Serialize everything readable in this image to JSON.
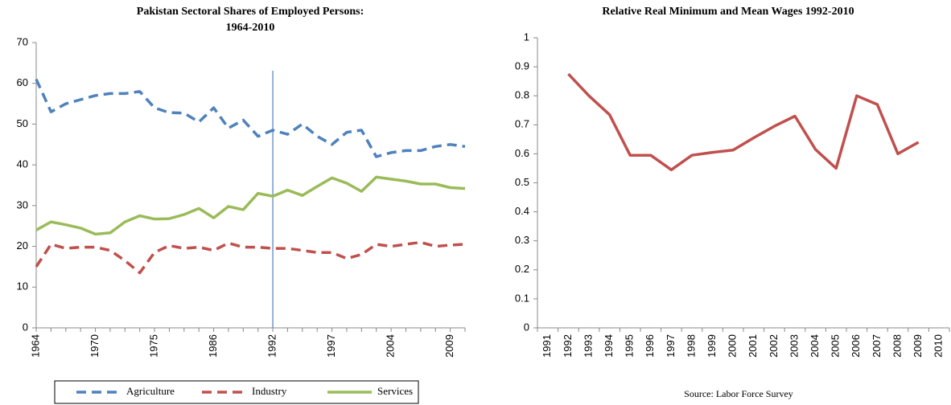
{
  "chart_data": [
    {
      "type": "line",
      "title": [
        "Pakistan Sectoral Shares of Employed Persons:",
        "1964-2010"
      ],
      "categories": [
        "1964",
        null,
        null,
        null,
        "1970",
        null,
        null,
        null,
        "1975",
        null,
        null,
        null,
        "1986",
        null,
        null,
        null,
        "1992",
        null,
        null,
        null,
        "1997",
        null,
        null,
        null,
        "2004",
        null,
        null,
        null,
        "2009",
        null
      ],
      "series": [
        {
          "name": "Agriculture",
          "color": "#4f81bd",
          "style": "dashed",
          "values": [
            61,
            53,
            55,
            56,
            57,
            57.5,
            57.5,
            58,
            54,
            52.8,
            52.7,
            50.5,
            54,
            49,
            51,
            47,
            48.5,
            47.5,
            50,
            47,
            45,
            48,
            48.5,
            42,
            43,
            43.5,
            43.5,
            44.5,
            45,
            44.5
          ]
        },
        {
          "name": "Industry",
          "color": "#c0504d",
          "style": "dashed",
          "values": [
            15,
            20.5,
            19.5,
            19.8,
            19.8,
            19,
            16.5,
            13.5,
            18.5,
            20.2,
            19.5,
            19.8,
            19,
            20.8,
            19.8,
            19.8,
            19.5,
            19.5,
            19,
            18.5,
            18.5,
            17,
            18,
            20.5,
            20,
            20.5,
            21,
            20,
            20.3,
            20.5
          ]
        },
        {
          "name": "Services",
          "color": "#9bbb59",
          "style": "solid",
          "values": [
            24,
            26,
            25.3,
            24.5,
            23,
            23.3,
            26,
            27.5,
            26.7,
            26.8,
            27.8,
            29.3,
            27,
            29.8,
            29,
            33,
            32.3,
            33.8,
            32.5,
            34.7,
            36.8,
            35.5,
            33.5,
            37,
            36.5,
            36,
            35.3,
            35.3,
            34.4,
            34.2
          ]
        }
      ],
      "vline": "1992",
      "vline_color": "#4f81bd",
      "ylim": [
        0,
        70
      ],
      "yticks": [
        0,
        10,
        20,
        30,
        40,
        50,
        60,
        70
      ],
      "legend": "bottom"
    },
    {
      "type": "line",
      "title": [
        "Relative Real Minimum and Mean Wages 1992-2010"
      ],
      "categories": [
        "1991",
        "1992",
        "1993",
        "1994",
        "1995",
        "1996",
        "1997",
        "1998",
        "1999",
        "2000",
        "2001",
        "2002",
        "2003",
        "2004",
        "2005",
        "2006",
        "2007",
        "2008",
        "2009",
        "2010"
      ],
      "series": [
        {
          "color": "#c0504d",
          "style": "solid",
          "values": [
            null,
            0.875,
            0.8,
            0.735,
            0.595,
            0.595,
            0.545,
            0.595,
            0.605,
            0.613,
            0.655,
            0.695,
            0.73,
            0.615,
            0.55,
            0.8,
            0.77,
            0.6,
            0.64,
            null
          ]
        }
      ],
      "ylim": [
        0,
        1
      ],
      "yticks": [
        0,
        0.1,
        0.2,
        0.3,
        0.4,
        0.5,
        0.6,
        0.7,
        0.8,
        0.9,
        1
      ],
      "note": "Source: Labor Force Survey"
    }
  ]
}
